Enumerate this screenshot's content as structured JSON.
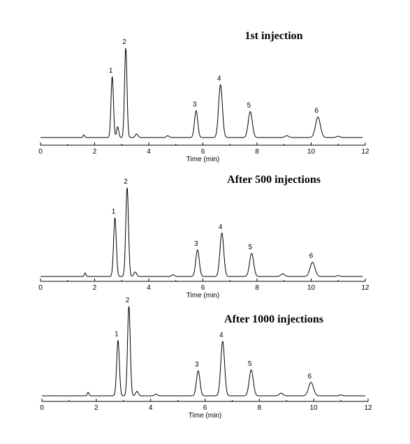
{
  "figure_domain": "chromatogram-stack",
  "chart_data": [
    {
      "type": "line",
      "title": "1st injection",
      "xlabel": "Time (min)",
      "ylabel": "",
      "xlim": [
        0,
        12
      ],
      "xticks": [
        0,
        2,
        4,
        6,
        8,
        10,
        12
      ],
      "y_axis_shown": false,
      "grid": false,
      "peaks": [
        {
          "label": "1",
          "rt": 2.65,
          "height": 0.68,
          "width": 0.045
        },
        {
          "label": "2",
          "rt": 3.15,
          "height": 1.0,
          "width": 0.045
        },
        {
          "label": "3",
          "rt": 5.75,
          "height": 0.3,
          "width": 0.06
        },
        {
          "label": "4",
          "rt": 6.65,
          "height": 0.59,
          "width": 0.07
        },
        {
          "label": "5",
          "rt": 7.75,
          "height": 0.29,
          "width": 0.075
        },
        {
          "label": "6",
          "rt": 10.25,
          "height": 0.23,
          "width": 0.09
        }
      ],
      "minor_peaks": [
        {
          "rt": 1.6,
          "height": 0.03,
          "width": 0.03
        },
        {
          "rt": 2.85,
          "height": 0.12,
          "width": 0.04
        },
        {
          "rt": 3.55,
          "height": 0.04,
          "width": 0.05
        },
        {
          "rt": 4.7,
          "height": 0.02,
          "width": 0.05
        },
        {
          "rt": 9.1,
          "height": 0.02,
          "width": 0.07
        },
        {
          "rt": 11.0,
          "height": 0.015,
          "width": 0.06
        }
      ]
    },
    {
      "type": "line",
      "title": "After 500 injections",
      "xlabel": "Time (min)",
      "ylabel": "",
      "xlim": [
        0,
        12
      ],
      "xticks": [
        0,
        2,
        4,
        6,
        8,
        10,
        12
      ],
      "y_axis_shown": false,
      "grid": false,
      "peaks": [
        {
          "label": "1",
          "rt": 2.75,
          "height": 0.66,
          "width": 0.05
        },
        {
          "label": "2",
          "rt": 3.2,
          "height": 1.0,
          "width": 0.05
        },
        {
          "label": "3",
          "rt": 5.8,
          "height": 0.3,
          "width": 0.065
        },
        {
          "label": "4",
          "rt": 6.7,
          "height": 0.49,
          "width": 0.07
        },
        {
          "label": "5",
          "rt": 7.8,
          "height": 0.26,
          "width": 0.075
        },
        {
          "label": "6",
          "rt": 10.05,
          "height": 0.16,
          "width": 0.09
        }
      ],
      "minor_peaks": [
        {
          "rt": 1.65,
          "height": 0.04,
          "width": 0.03
        },
        {
          "rt": 3.5,
          "height": 0.05,
          "width": 0.05
        },
        {
          "rt": 4.9,
          "height": 0.02,
          "width": 0.05
        },
        {
          "rt": 8.95,
          "height": 0.03,
          "width": 0.07
        },
        {
          "rt": 11.0,
          "height": 0.01,
          "width": 0.06
        }
      ]
    },
    {
      "type": "line",
      "title": "After 1000 injections",
      "xlabel": "Time (min)",
      "ylabel": "",
      "xlim": [
        0,
        12
      ],
      "xticks": [
        0,
        2,
        4,
        6,
        8,
        10,
        12
      ],
      "y_axis_shown": false,
      "grid": false,
      "peaks": [
        {
          "label": "1",
          "rt": 2.8,
          "height": 0.62,
          "width": 0.05
        },
        {
          "label": "2",
          "rt": 3.2,
          "height": 1.0,
          "width": 0.05
        },
        {
          "label": "3",
          "rt": 5.75,
          "height": 0.28,
          "width": 0.065
        },
        {
          "label": "4",
          "rt": 6.65,
          "height": 0.61,
          "width": 0.07
        },
        {
          "label": "5",
          "rt": 7.7,
          "height": 0.29,
          "width": 0.075
        },
        {
          "label": "6",
          "rt": 9.9,
          "height": 0.15,
          "width": 0.09
        }
      ],
      "minor_peaks": [
        {
          "rt": 1.7,
          "height": 0.04,
          "width": 0.03
        },
        {
          "rt": 3.5,
          "height": 0.05,
          "width": 0.05
        },
        {
          "rt": 4.2,
          "height": 0.02,
          "width": 0.05
        },
        {
          "rt": 8.8,
          "height": 0.03,
          "width": 0.07
        },
        {
          "rt": 11.0,
          "height": 0.01,
          "width": 0.06
        }
      ]
    }
  ]
}
